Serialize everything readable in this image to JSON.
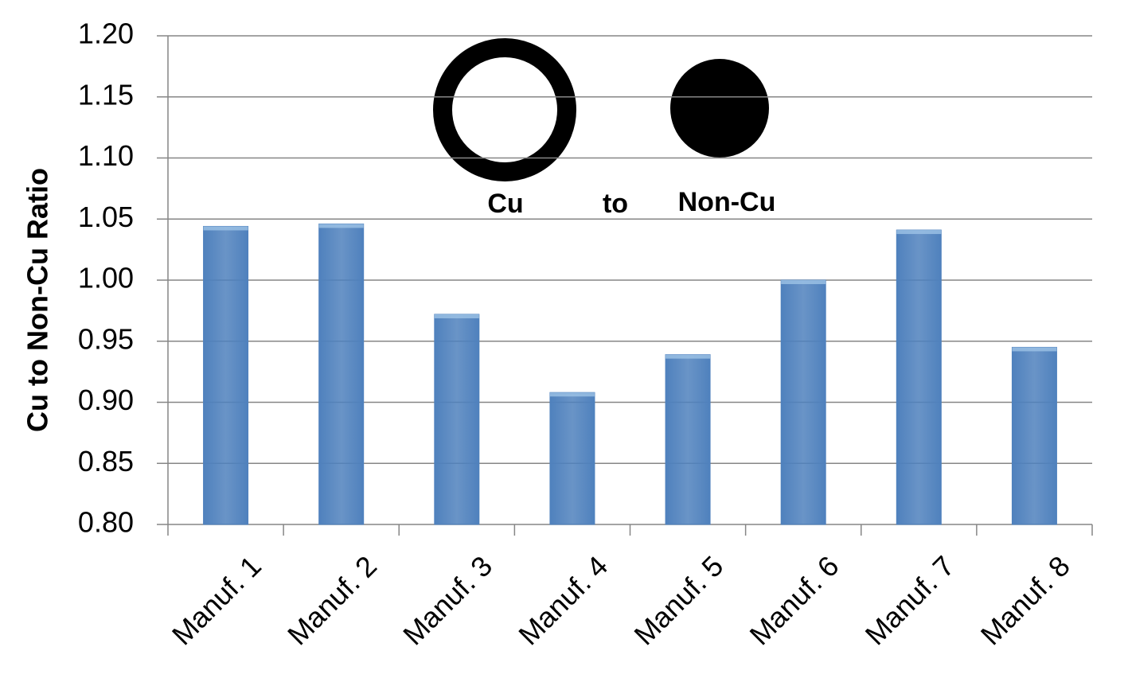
{
  "chart_data": {
    "type": "bar",
    "y_label": "Cu to Non-Cu Ratio",
    "annotations": [
      "Cu",
      "to",
      "Non-Cu"
    ],
    "categories": [
      "Manuf. 1",
      "Manuf. 2",
      "Manuf. 3",
      "Manuf. 4",
      "Manuf. 5",
      "Manuf. 6",
      "Manuf. 7",
      "Manuf. 8"
    ],
    "values": [
      1.044,
      1.046,
      0.972,
      0.908,
      0.939,
      1.0,
      1.041,
      0.945
    ],
    "color": "#4f81bd",
    "ylim": [
      0.8,
      1.2
    ],
    "yticks": [
      {
        "value": 0.8,
        "label": "0.80"
      },
      0.85,
      {
        "value": 0.9,
        "label": "0.90"
      },
      0.95,
      {
        "value": 1.0,
        "label": "1.00"
      },
      1.05,
      {
        "value": 1.1,
        "label": "1.10"
      },
      1.15,
      {
        "value": 1.2,
        "label": "1.20"
      }
    ],
    "grid": true
  }
}
